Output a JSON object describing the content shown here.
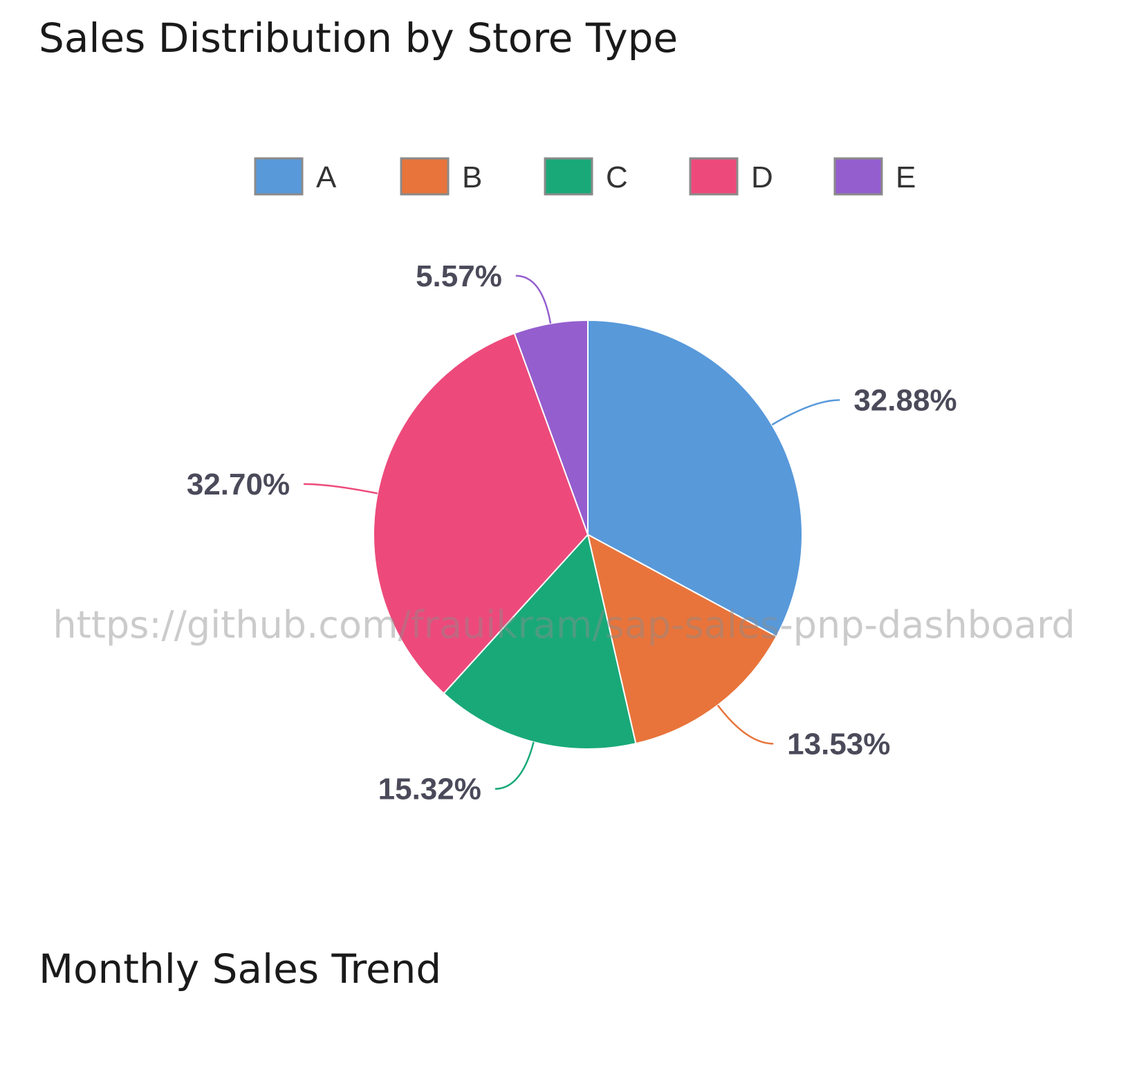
{
  "sections": {
    "pie_title": "Sales Distribution by Store Type",
    "trend_title": "Monthly Sales Trend"
  },
  "watermark": "https://github.com/frauikram/sap-sales-pnp-dashboard",
  "chart_data": {
    "type": "pie",
    "title": "Sales Distribution by Store Type",
    "legend_position": "top",
    "start_angle_deg": 0,
    "direction": "clockwise",
    "slices": [
      {
        "label": "A",
        "value": 32.88,
        "display": "32.88%",
        "color": "#5899da"
      },
      {
        "label": "B",
        "value": 13.53,
        "display": "13.53%",
        "color": "#e8743b"
      },
      {
        "label": "C",
        "value": 15.32,
        "display": "15.32%",
        "color": "#19a979"
      },
      {
        "label": "D",
        "value": 32.7,
        "display": "32.70%",
        "color": "#ed4a7b"
      },
      {
        "label": "E",
        "value": 5.57,
        "display": "5.57%",
        "color": "#945ecf"
      }
    ]
  }
}
